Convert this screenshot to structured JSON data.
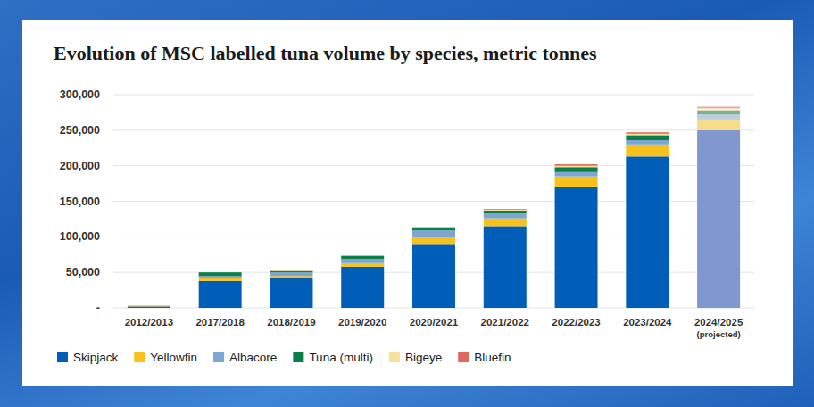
{
  "chart_data": {
    "type": "bar",
    "stacked": true,
    "title": "Evolution of MSC labelled tuna volume by species, metric tonnes",
    "categories": [
      "2012/2013",
      "2017/2018",
      "2018/2019",
      "2019/2020",
      "2020/2021",
      "2021/2022",
      "2022/2023",
      "2023/2024",
      "2024/2025\n(projected)"
    ],
    "series": [
      {
        "name": "Skipjack",
        "color": "#005eb8",
        "colors": [
          "#005eb8",
          "#005eb8",
          "#005eb8",
          "#005eb8",
          "#005eb8",
          "#005eb8",
          "#005eb8",
          "#005eb8",
          "#8198cf"
        ],
        "values": [
          2000,
          38000,
          42000,
          58000,
          90000,
          115000,
          170000,
          213000,
          250000
        ]
      },
      {
        "name": "Yellowfin",
        "color": "#f8c21c",
        "colors": [
          "#f8c21c",
          "#f8c21c",
          "#f8c21c",
          "#f8c21c",
          "#f8c21c",
          "#f8c21c",
          "#f8c21c",
          "#f8c21c",
          "#f7dc8a"
        ],
        "values": [
          500,
          4000,
          3000,
          5000,
          10000,
          11000,
          15000,
          17000,
          15000
        ]
      },
      {
        "name": "Albacore",
        "color": "#7ea6d2",
        "colors": [
          "#7ea6d2",
          "#7ea6d2",
          "#7ea6d2",
          "#7ea6d2",
          "#7ea6d2",
          "#7ea6d2",
          "#7ea6d2",
          "#7ea6d2",
          "#b8cde6"
        ],
        "values": [
          300,
          3000,
          5000,
          6000,
          9000,
          7000,
          6000,
          6000,
          7000
        ]
      },
      {
        "name": "Tuna (multi)",
        "color": "#0b7f4a",
        "colors": [
          "#0b7f4a",
          "#0b7f4a",
          "#0b7f4a",
          "#0b7f4a",
          "#0b7f4a",
          "#0b7f4a",
          "#0b7f4a",
          "#0b7f4a",
          "#7fae95"
        ],
        "values": [
          200,
          5000,
          2000,
          4000,
          3000,
          4000,
          7000,
          7000,
          6000
        ]
      },
      {
        "name": "Bigeye",
        "color": "#f6e29a",
        "colors": [
          "#f6e29a",
          "#f6e29a",
          "#f6e29a",
          "#f6e29a",
          "#f6e29a",
          "#f6e29a",
          "#f6e29a",
          "#f6e29a",
          "#f9edc4"
        ],
        "values": [
          0,
          0,
          1000,
          500,
          500,
          1000,
          2000,
          2000,
          3000
        ]
      },
      {
        "name": "Bluefin",
        "color": "#e0675f",
        "colors": [
          "#e0675f",
          "#e0675f",
          "#e0675f",
          "#e0675f",
          "#e0675f",
          "#e0675f",
          "#e0675f",
          "#e0675f",
          "#ee9f9a"
        ],
        "values": [
          0,
          0,
          0,
          500,
          1000,
          1000,
          2000,
          2000,
          2000
        ]
      }
    ],
    "ylim": [
      0,
      300000
    ],
    "yticks": [
      {
        "value": 0,
        "label": "-"
      },
      {
        "value": 50000,
        "label": "50,000"
      },
      {
        "value": 100000,
        "label": "100,000"
      },
      {
        "value": 150000,
        "label": "150,000"
      },
      {
        "value": 200000,
        "label": "200,000"
      },
      {
        "value": 250000,
        "label": "250,000"
      },
      {
        "value": 300000,
        "label": "300,000"
      }
    ],
    "grid": true,
    "legend": "bottom"
  }
}
